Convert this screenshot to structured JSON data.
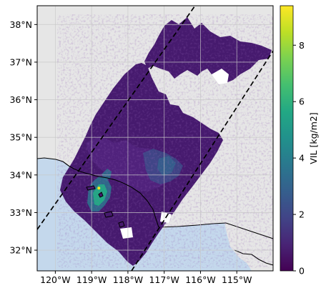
{
  "chart_data": {
    "type": "heatmap",
    "title": "",
    "colorbar": {
      "label": "VIL [kg/m2]",
      "range": [
        0,
        9.4
      ],
      "ticks": [
        0,
        2,
        4,
        6,
        8
      ],
      "tick_labels": [
        "0",
        "2",
        "4",
        "6",
        "8"
      ],
      "colormap": "viridis"
    },
    "axes": {
      "xlim": [
        -120.5,
        -114.0
      ],
      "ylim": [
        31.45,
        38.5
      ],
      "xticks": [
        -120,
        -119,
        -118,
        -117,
        -116,
        -115
      ],
      "xtick_labels": [
        "120°W",
        "119°W",
        "118°W",
        "117°W",
        "116°W",
        "115°W"
      ],
      "yticks": [
        32,
        33,
        34,
        35,
        36,
        37,
        38
      ],
      "ytick_labels": [
        "32°N",
        "33°N",
        "34°N",
        "35°N",
        "36°N",
        "37°N",
        "38°N"
      ],
      "grid": true
    },
    "swath_bounds": {
      "left_edge": [
        [
          -120.5,
          32.55
        ],
        [
          -116.15,
          38.5
        ]
      ],
      "right_edge": [
        [
          -117.9,
          31.45
        ],
        [
          -114.0,
          37.3
        ]
      ]
    },
    "max_cell": {
      "lon": -118.8,
      "lat": 33.65,
      "value": 9.2
    },
    "colors": {
      "ocean": "#c4d8ec",
      "land": "#e6e6e6",
      "grid": "#c8c8c8",
      "coast": "#000000",
      "no_data": "#ffffff"
    }
  }
}
